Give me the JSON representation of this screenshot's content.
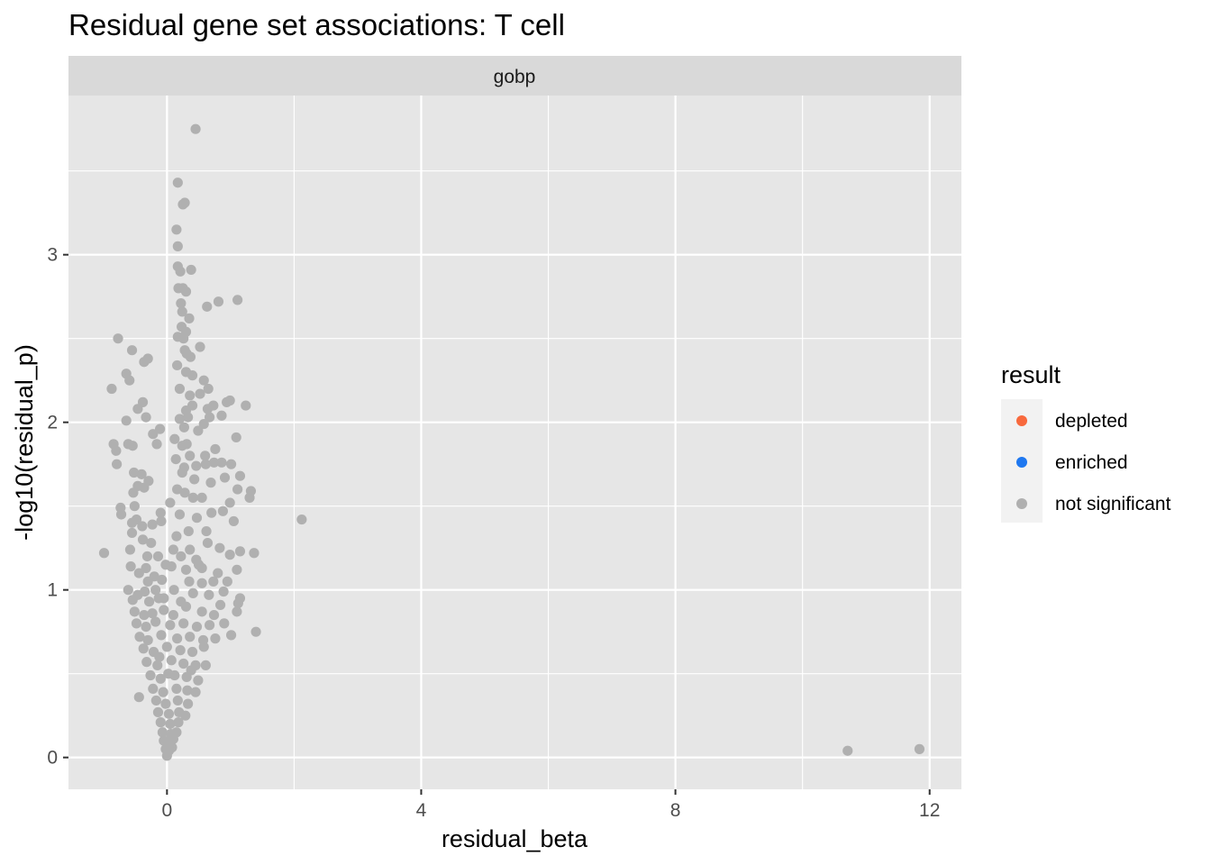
{
  "chart_data": {
    "type": "scatter",
    "title": "Residual gene set associations: T cell",
    "facet": "gobp",
    "xlabel": "residual_beta",
    "ylabel": "-log10(residual_p)",
    "xlim": [
      -1.55,
      12.5
    ],
    "ylim": [
      -0.19,
      3.95
    ],
    "x_ticks": [
      0,
      4,
      8,
      12
    ],
    "x_tick_labels": [
      "0",
      "4",
      "8",
      "12"
    ],
    "y_ticks": [
      0,
      1,
      2,
      3
    ],
    "y_tick_labels": [
      "0",
      "1",
      "2",
      "3"
    ],
    "grid": true,
    "legend": {
      "title": "result",
      "position": "right",
      "entries": [
        {
          "label": "depleted",
          "color": "#F8693D"
        },
        {
          "label": "enriched",
          "color": "#1F78F0"
        },
        {
          "label": "not significant",
          "color": "#B0B0B0"
        }
      ]
    },
    "series": [
      {
        "name": "not significant",
        "color": "#B0B0B0",
        "points": [
          [
            0.45,
            3.75
          ],
          [
            0.17,
            3.43
          ],
          [
            0.28,
            3.31
          ],
          [
            0.25,
            3.3
          ],
          [
            0.15,
            3.15
          ],
          [
            0.17,
            3.05
          ],
          [
            0.17,
            2.93
          ],
          [
            0.21,
            2.9
          ],
          [
            0.38,
            2.91
          ],
          [
            0.18,
            2.8
          ],
          [
            0.25,
            2.8
          ],
          [
            0.3,
            2.78
          ],
          [
            0.81,
            2.72
          ],
          [
            1.11,
            2.73
          ],
          [
            0.63,
            2.69
          ],
          [
            0.22,
            2.71
          ],
          [
            0.24,
            2.66
          ],
          [
            0.35,
            2.62
          ],
          [
            0.23,
            2.57
          ],
          [
            0.3,
            2.54
          ],
          [
            0.17,
            2.51
          ],
          [
            0.26,
            2.5
          ],
          [
            -0.77,
            2.5
          ],
          [
            -0.55,
            2.43
          ],
          [
            0.52,
            2.45
          ],
          [
            0.28,
            2.43
          ],
          [
            0.31,
            2.41
          ],
          [
            0.37,
            2.39
          ],
          [
            -0.36,
            2.36
          ],
          [
            -0.3,
            2.38
          ],
          [
            -0.64,
            2.29
          ],
          [
            -0.59,
            2.25
          ],
          [
            0.16,
            2.34
          ],
          [
            0.3,
            2.3
          ],
          [
            0.4,
            2.28
          ],
          [
            -0.87,
            2.2
          ],
          [
            0.58,
            2.25
          ],
          [
            0.65,
            2.2
          ],
          [
            0.52,
            2.17
          ],
          [
            0.36,
            2.16
          ],
          [
            -0.38,
            2.12
          ],
          [
            -0.46,
            2.08
          ],
          [
            0.94,
            2.12
          ],
          [
            0.99,
            2.13
          ],
          [
            1.24,
            2.1
          ],
          [
            0.73,
            2.1
          ],
          [
            0.64,
            2.08
          ],
          [
            0.3,
            2.07
          ],
          [
            0.33,
            2.03
          ],
          [
            0.67,
            2.03
          ],
          [
            0.86,
            2.04
          ],
          [
            -0.33,
            2.03
          ],
          [
            -0.64,
            2.01
          ],
          [
            0.2,
            2.02
          ],
          [
            0.27,
            1.97
          ],
          [
            0.58,
            1.99
          ],
          [
            0.49,
            1.95
          ],
          [
            -0.11,
            1.96
          ],
          [
            -0.22,
            1.93
          ],
          [
            1.09,
            1.91
          ],
          [
            -0.61,
            1.87
          ],
          [
            -0.54,
            1.86
          ],
          [
            -0.84,
            1.87
          ],
          [
            -0.8,
            1.83
          ],
          [
            -0.16,
            1.87
          ],
          [
            0.24,
            1.86
          ],
          [
            0.31,
            1.87
          ],
          [
            0.76,
            1.84
          ],
          [
            0.6,
            1.8
          ],
          [
            -0.79,
            1.75
          ],
          [
            -0.52,
            1.7
          ],
          [
            -0.4,
            1.69
          ],
          [
            0.27,
            1.73
          ],
          [
            0.46,
            1.74
          ],
          [
            0.61,
            1.75
          ],
          [
            0.74,
            1.76
          ],
          [
            0.86,
            1.76
          ],
          [
            1.01,
            1.75
          ],
          [
            1.15,
            1.68
          ],
          [
            0.91,
            1.67
          ],
          [
            0.69,
            1.64
          ],
          [
            -0.46,
            1.62
          ],
          [
            -0.29,
            1.65
          ],
          [
            -0.36,
            1.61
          ],
          [
            -0.53,
            1.58
          ],
          [
            1.11,
            1.6
          ],
          [
            1.32,
            1.59
          ],
          [
            1.3,
            1.55
          ],
          [
            0.99,
            1.52
          ],
          [
            -0.51,
            1.5
          ],
          [
            -0.73,
            1.49
          ],
          [
            -0.72,
            1.45
          ],
          [
            -0.48,
            1.42
          ],
          [
            -0.55,
            1.4
          ],
          [
            -0.39,
            1.38
          ],
          [
            -0.23,
            1.39
          ],
          [
            -0.09,
            1.41
          ],
          [
            -0.1,
            1.46
          ],
          [
            0.2,
            1.45
          ],
          [
            0.47,
            1.43
          ],
          [
            0.7,
            1.46
          ],
          [
            0.88,
            1.47
          ],
          [
            1.05,
            1.41
          ],
          [
            2.12,
            1.42
          ],
          [
            -0.55,
            1.34
          ],
          [
            -0.38,
            1.3
          ],
          [
            -0.25,
            1.28
          ],
          [
            -0.58,
            1.24
          ],
          [
            -0.99,
            1.22
          ],
          [
            -0.31,
            1.2
          ],
          [
            0.15,
            1.32
          ],
          [
            0.36,
            1.24
          ],
          [
            0.64,
            1.28
          ],
          [
            0.83,
            1.25
          ],
          [
            0.99,
            1.21
          ],
          [
            1.15,
            1.23
          ],
          [
            1.37,
            1.22
          ],
          [
            -0.57,
            1.14
          ],
          [
            -0.44,
            1.1
          ],
          [
            -0.33,
            1.13
          ],
          [
            -0.2,
            1.08
          ],
          [
            -0.08,
            1.06
          ],
          [
            0.07,
            1.14
          ],
          [
            0.3,
            1.12
          ],
          [
            0.55,
            1.13
          ],
          [
            0.8,
            1.1
          ],
          [
            1.1,
            1.12
          ],
          [
            0.95,
            1.05
          ],
          [
            0.73,
            1.05
          ],
          [
            0.55,
            1.04
          ],
          [
            -0.61,
            1.0
          ],
          [
            -0.46,
            0.97
          ],
          [
            -0.35,
            0.99
          ],
          [
            -0.54,
            0.94
          ],
          [
            -0.05,
            0.95
          ],
          [
            0.11,
            1.0
          ],
          [
            0.41,
            0.98
          ],
          [
            0.66,
            0.97
          ],
          [
            0.89,
            0.99
          ],
          [
            1.15,
            0.95
          ],
          [
            1.12,
            0.92
          ],
          [
            0.84,
            0.91
          ],
          [
            -0.51,
            0.87
          ],
          [
            -0.36,
            0.85
          ],
          [
            -0.23,
            0.86
          ],
          [
            -0.05,
            0.88
          ],
          [
            0.3,
            0.9
          ],
          [
            0.55,
            0.87
          ],
          [
            0.74,
            0.85
          ],
          [
            1.1,
            0.87
          ],
          [
            -0.48,
            0.8
          ],
          [
            -0.33,
            0.78
          ],
          [
            -0.18,
            0.81
          ],
          [
            0.05,
            0.79
          ],
          [
            0.26,
            0.8
          ],
          [
            0.47,
            0.78
          ],
          [
            0.67,
            0.79
          ],
          [
            0.9,
            0.8
          ],
          [
            1.4,
            0.75
          ],
          [
            1.01,
            0.73
          ],
          [
            -0.43,
            0.72
          ],
          [
            -0.3,
            0.7
          ],
          [
            -0.09,
            0.73
          ],
          [
            0.16,
            0.71
          ],
          [
            0.36,
            0.72
          ],
          [
            0.57,
            0.7
          ],
          [
            0.76,
            0.71
          ],
          [
            -0.37,
            0.65
          ],
          [
            -0.21,
            0.63
          ],
          [
            0.0,
            0.66
          ],
          [
            0.21,
            0.64
          ],
          [
            0.4,
            0.63
          ],
          [
            0.58,
            0.66
          ],
          [
            -0.32,
            0.57
          ],
          [
            -0.15,
            0.55
          ],
          [
            0.07,
            0.58
          ],
          [
            0.26,
            0.56
          ],
          [
            0.45,
            0.55
          ],
          [
            0.61,
            0.55
          ],
          [
            -0.26,
            0.49
          ],
          [
            -0.1,
            0.47
          ],
          [
            0.12,
            0.49
          ],
          [
            0.31,
            0.48
          ],
          [
            0.49,
            0.46
          ],
          [
            -0.22,
            0.41
          ],
          [
            -0.06,
            0.39
          ],
          [
            0.15,
            0.41
          ],
          [
            0.32,
            0.4
          ],
          [
            0.45,
            0.39
          ],
          [
            -0.44,
            0.36
          ],
          [
            -0.17,
            0.34
          ],
          [
            -0.02,
            0.32
          ],
          [
            0.17,
            0.34
          ],
          [
            0.33,
            0.32
          ],
          [
            -0.14,
            0.27
          ],
          [
            0.03,
            0.26
          ],
          [
            0.19,
            0.27
          ],
          [
            0.29,
            0.25
          ],
          [
            -0.1,
            0.21
          ],
          [
            0.05,
            0.2
          ],
          [
            0.18,
            0.21
          ],
          [
            -0.07,
            0.15
          ],
          [
            0.06,
            0.14
          ],
          [
            0.15,
            0.15
          ],
          [
            -0.05,
            0.1
          ],
          [
            0.04,
            0.09
          ],
          [
            0.1,
            0.11
          ],
          [
            -0.02,
            0.05
          ],
          [
            0.03,
            0.04
          ],
          [
            0.08,
            0.06
          ],
          [
            0.0,
            0.01
          ],
          [
            10.71,
            0.04
          ],
          [
            11.84,
            0.05
          ],
          [
            0.05,
            1.52
          ],
          [
            0.16,
            1.6
          ],
          [
            0.28,
            1.58
          ],
          [
            0.41,
            1.55
          ],
          [
            0.24,
            1.7
          ],
          [
            0.36,
            1.8
          ],
          [
            0.14,
            1.78
          ],
          [
            0.43,
            1.66
          ],
          [
            0.1,
            1.24
          ],
          [
            0.22,
            1.2
          ],
          [
            0.34,
            1.35
          ],
          [
            0.46,
            1.18
          ],
          [
            -0.14,
            1.2
          ],
          [
            -0.02,
            1.15
          ],
          [
            0.1,
            0.85
          ],
          [
            0.22,
            0.93
          ],
          [
            -0.28,
            0.93
          ],
          [
            -0.13,
            0.95
          ],
          [
            0.35,
            1.05
          ],
          [
            0.5,
            1.15
          ],
          [
            0.62,
            1.35
          ],
          [
            0.55,
            1.55
          ],
          [
            0.12,
            1.9
          ],
          [
            0.4,
            2.1
          ],
          [
            0.2,
            2.2
          ],
          [
            -0.12,
            0.6
          ],
          [
            0.02,
            0.5
          ],
          [
            0.38,
            0.52
          ],
          [
            -0.3,
            1.05
          ],
          [
            -0.18,
            1.0
          ]
        ]
      }
    ]
  }
}
